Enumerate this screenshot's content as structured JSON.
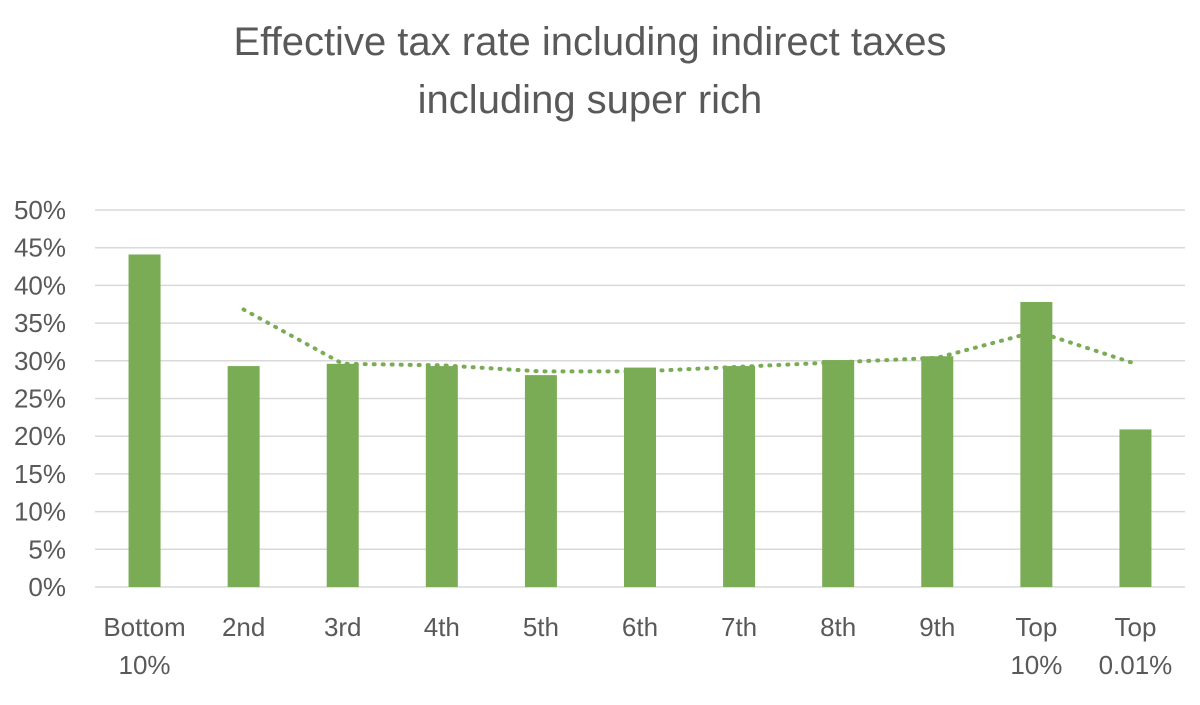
{
  "chart_data": {
    "type": "bar",
    "title_lines": [
      "Effective tax rate including indirect taxes",
      "including super rich"
    ],
    "categories": [
      [
        "Bottom",
        "10%"
      ],
      [
        "2nd"
      ],
      [
        "3rd"
      ],
      [
        "4th"
      ],
      [
        "5th"
      ],
      [
        "6th"
      ],
      [
        "7th"
      ],
      [
        "8th"
      ],
      [
        "9th"
      ],
      [
        "Top",
        "10%"
      ],
      [
        "Top",
        "0.01%"
      ]
    ],
    "values": [
      44.1,
      29.3,
      29.6,
      29.3,
      28.1,
      29.1,
      29.3,
      30.1,
      30.6,
      37.8,
      20.9
    ],
    "trendline": {
      "style": "dotted",
      "from_index": 1,
      "values": [
        36.8,
        29.6,
        29.4,
        28.6,
        28.6,
        29.2,
        29.8,
        30.4,
        33.9,
        29.6
      ]
    },
    "ylim": [
      0,
      50
    ],
    "yticks": [
      "0%",
      "5%",
      "10%",
      "15%",
      "20%",
      "25%",
      "30%",
      "35%",
      "40%",
      "45%",
      "50%"
    ],
    "grid": true,
    "colors": {
      "bar": "#7aab55",
      "trend": "#7aab55",
      "grid": "#d9d9d9",
      "text": "#595959"
    }
  }
}
